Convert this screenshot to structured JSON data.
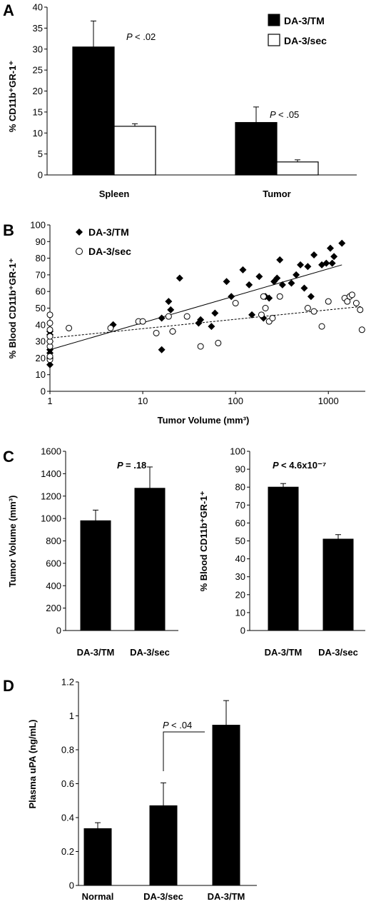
{
  "chart_data": [
    {
      "panel": "A",
      "type": "bar",
      "ylabel": "% CD11b⁺GR-1⁺",
      "ylim": [
        0,
        40
      ],
      "yticks": [
        "0",
        "5",
        "10",
        "15",
        "20",
        "25",
        "30",
        "35",
        "40"
      ],
      "categories": [
        "Spleen",
        "Tumor"
      ],
      "series": [
        {
          "name": "DA-3/TM",
          "color": "#000000",
          "values": [
            30.5,
            12.5
          ],
          "errors": [
            6.2,
            3.7
          ]
        },
        {
          "name": "DA-3/sec",
          "color": "#ffffff",
          "values": [
            11.6,
            3.1
          ],
          "errors": [
            0.6,
            0.5
          ]
        }
      ],
      "annotations": [
        {
          "text": "P < .02",
          "category": "Spleen"
        },
        {
          "text": "P < .05",
          "category": "Tumor"
        }
      ],
      "legend": "top-right"
    },
    {
      "panel": "B",
      "type": "scatter",
      "xlabel": "Tumor Volume (mm³)",
      "ylabel": "% Blood CD11b⁺GR-1⁺",
      "xscale": "log",
      "xlim": [
        1,
        2500
      ],
      "xticks": [
        "1",
        "10",
        "100",
        "1000"
      ],
      "ylim": [
        0,
        100
      ],
      "yticks": [
        "0",
        "10",
        "20",
        "30",
        "40",
        "50",
        "60",
        "70",
        "80",
        "90",
        "100"
      ],
      "series": [
        {
          "name": "DA-3/TM",
          "marker": "diamond",
          "points": [
            [
              1,
              16
            ],
            [
              1,
              20
            ],
            [
              1,
              23
            ],
            [
              1,
              25
            ],
            [
              1,
              30
            ],
            [
              1,
              34
            ],
            [
              1,
              36
            ],
            [
              4.8,
              40
            ],
            [
              16,
              25
            ],
            [
              16,
              44
            ],
            [
              19,
              54
            ],
            [
              20,
              49
            ],
            [
              21,
              36
            ],
            [
              25,
              68
            ],
            [
              40,
              41
            ],
            [
              42,
              43
            ],
            [
              55,
              39
            ],
            [
              60,
              47
            ],
            [
              80,
              66
            ],
            [
              90,
              57
            ],
            [
              120,
              73
            ],
            [
              140,
              64
            ],
            [
              150,
              46
            ],
            [
              180,
              69
            ],
            [
              200,
              44
            ],
            [
              210,
              57
            ],
            [
              230,
              56
            ],
            [
              260,
              66
            ],
            [
              280,
              68
            ],
            [
              300,
              79
            ],
            [
              320,
              64
            ],
            [
              400,
              65
            ],
            [
              450,
              70
            ],
            [
              500,
              76
            ],
            [
              550,
              62
            ],
            [
              600,
              75
            ],
            [
              650,
              57
            ],
            [
              700,
              82
            ],
            [
              850,
              76
            ],
            [
              950,
              77
            ],
            [
              1050,
              86
            ],
            [
              1100,
              77
            ],
            [
              1150,
              81
            ],
            [
              1400,
              89
            ]
          ],
          "trendline": {
            "x": [
              1,
              1400
            ],
            "y": [
              25,
              76
            ]
          }
        },
        {
          "name": "DA-3/sec",
          "marker": "open-circle",
          "points": [
            [
              1,
              19
            ],
            [
              1,
              21
            ],
            [
              1,
              27
            ],
            [
              1,
              30
            ],
            [
              1,
              33
            ],
            [
              1,
              37
            ],
            [
              1,
              41
            ],
            [
              1,
              46
            ],
            [
              1.6,
              38
            ],
            [
              4.5,
              38
            ],
            [
              9,
              42
            ],
            [
              10,
              42
            ],
            [
              14,
              35
            ],
            [
              19,
              45
            ],
            [
              21,
              36
            ],
            [
              30,
              45
            ],
            [
              42,
              27
            ],
            [
              65,
              29
            ],
            [
              100,
              53
            ],
            [
              190,
              46
            ],
            [
              200,
              57
            ],
            [
              210,
              50
            ],
            [
              230,
              42
            ],
            [
              250,
              44
            ],
            [
              300,
              57
            ],
            [
              600,
              50
            ],
            [
              700,
              48
            ],
            [
              850,
              39
            ],
            [
              1000,
              54
            ],
            [
              1500,
              56
            ],
            [
              1600,
              54
            ],
            [
              1700,
              57
            ],
            [
              1800,
              58
            ],
            [
              2000,
              53
            ],
            [
              2200,
              49
            ],
            [
              2300,
              37
            ]
          ],
          "trendline": {
            "x": [
              1,
              2300
            ],
            "y": [
              32,
              51
            ]
          }
        }
      ],
      "legend": "top-left"
    },
    {
      "panel": "C-left",
      "type": "bar",
      "ylabel": "Tumor Volume (mm³)",
      "ylim": [
        0,
        1600
      ],
      "yticks": [
        "0",
        "200",
        "400",
        "600",
        "800",
        "1000",
        "1200",
        "1400",
        "1600"
      ],
      "categories": [
        "DA-3/TM",
        "DA-3/sec"
      ],
      "values": [
        980,
        1270
      ],
      "errors": [
        95,
        190
      ],
      "annotations": [
        {
          "text": "P = .18"
        }
      ]
    },
    {
      "panel": "C-right",
      "type": "bar",
      "ylabel": "% Blood CD11b⁺GR-1⁺",
      "ylim": [
        0,
        100
      ],
      "yticks": [
        "0",
        "10",
        "20",
        "30",
        "40",
        "50",
        "60",
        "70",
        "80",
        "90",
        "100"
      ],
      "categories": [
        "DA-3/TM",
        "DA-3/sec"
      ],
      "values": [
        80,
        51
      ],
      "errors": [
        2,
        2.5
      ],
      "annotations": [
        {
          "text": "P < 4.6x10⁻⁷"
        }
      ]
    },
    {
      "panel": "D",
      "type": "bar",
      "ylabel": "Plasma uPA (ng/mL)",
      "ylim": [
        0,
        1.2
      ],
      "yticks": [
        "0",
        "0.2",
        "0.4",
        "0.6",
        "0.8",
        "1",
        "1.2"
      ],
      "categories": [
        "Normal",
        "DA-3/sec",
        "DA-3/TM"
      ],
      "values": [
        0.335,
        0.47,
        0.945
      ],
      "errors": [
        0.035,
        0.135,
        0.145
      ],
      "annotations": [
        {
          "text": "P < .04",
          "between": [
            "DA-3/sec",
            "DA-3/TM"
          ]
        }
      ]
    }
  ],
  "text": {
    "panel_letters": [
      "A",
      "B",
      "C",
      "D"
    ],
    "a_spleen": "Spleen",
    "a_tumor": "Tumor",
    "a_legend_tm": "DA-3/TM",
    "a_legend_sec": "DA-3/sec",
    "a_ylabel": "% CD11b⁺GR-1⁺",
    "a_p1": "< .02",
    "a_p2": "< .05",
    "b_legend_tm": "DA-3/TM",
    "b_legend_sec": "DA-3/sec",
    "b_xlabel": "Tumor Volume (mm³)",
    "b_ylabel": "% Blood CD11b⁺GR-1⁺",
    "c_left_ylabel": "Tumor Volume (mm³)",
    "c_right_ylabel": "% Blood CD11b⁺GR-1⁺",
    "c_left_p": "= .18",
    "c_right_p": "< 4.6x10⁻⁷",
    "c_cat_tm": "DA-3/TM",
    "c_cat_sec": "DA-3/sec",
    "d_ylabel": "Plasma uPA (ng/mL)",
    "d_p": "< .04",
    "d_cat_normal": "Normal",
    "d_cat_sec": "DA-3/sec",
    "d_cat_tm": "DA-3/TM",
    "p_letter": "P"
  }
}
